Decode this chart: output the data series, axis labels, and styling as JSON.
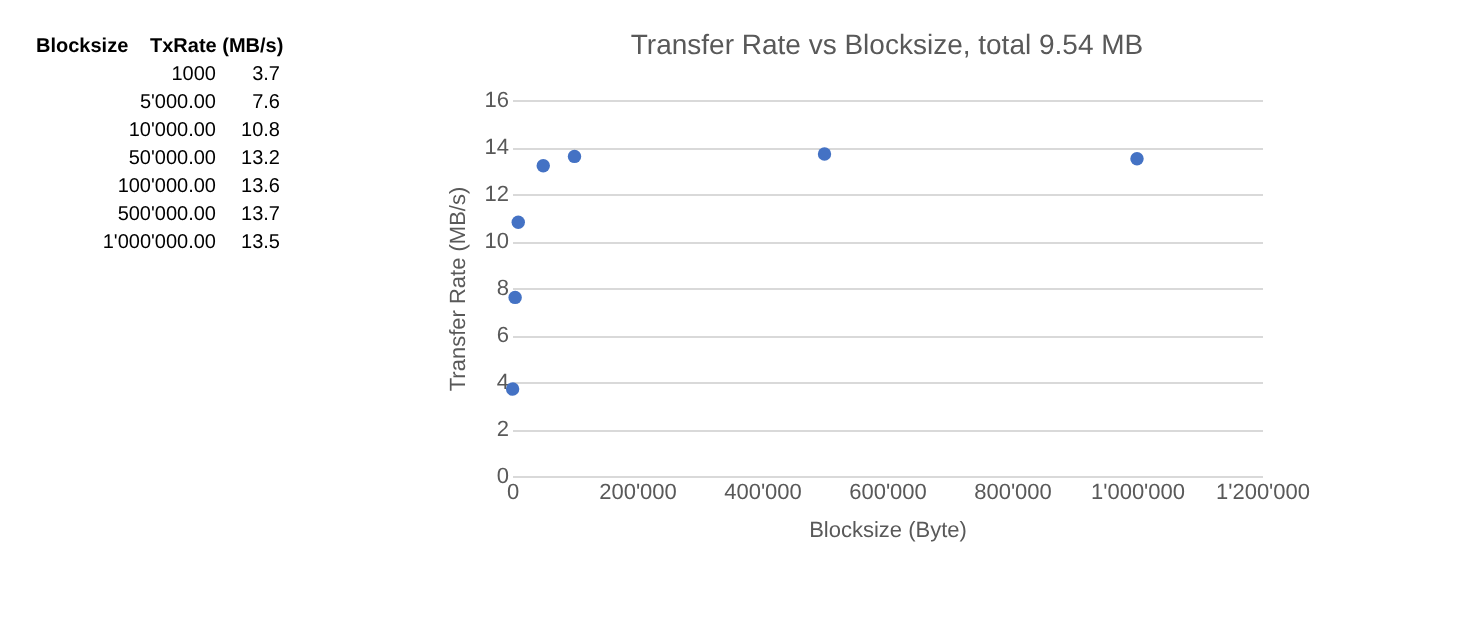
{
  "chart_data": [
    {
      "type": "other",
      "annotations": [
        "Blocksize",
        "TxRate (MB/s)",
        "1000",
        "3.7",
        "5'000.00",
        "7.6",
        "10'000.00",
        "10.8",
        "50'000.00",
        "13.2",
        "100'000.00",
        "13.6",
        "500'000.00",
        "13.7",
        "1'000'000.00",
        "13.5"
      ]
    },
    {
      "type": "scatter",
      "title": "Transfer Rate vs Blocksize, total 9.54 MB",
      "xlabel": "Blocksize (Byte)",
      "ylabel": "Transfer Rate (MB/s)",
      "x": [
        1000,
        5000,
        10000,
        50000,
        100000,
        500000,
        1000000
      ],
      "values": [
        3.7,
        7.6,
        10.8,
        13.2,
        13.6,
        13.7,
        13.5
      ],
      "color": "#4472c4",
      "marker": "circle",
      "grid": "y",
      "xlim": [
        0,
        1200000
      ],
      "xticks": [
        0,
        {
          "value": 200000,
          "label": "200'000"
        },
        {
          "value": 400000,
          "label": "400'000"
        },
        {
          "value": 600000,
          "label": "600'000"
        },
        {
          "value": 800000,
          "label": "800'000"
        },
        {
          "value": 1000000,
          "label": "1'000'000"
        },
        {
          "value": 1200000,
          "label": "1'200'000"
        }
      ],
      "ylim": [
        0,
        16
      ],
      "yticks": [
        0,
        2,
        4,
        6,
        8,
        10,
        12,
        14,
        16
      ]
    }
  ]
}
